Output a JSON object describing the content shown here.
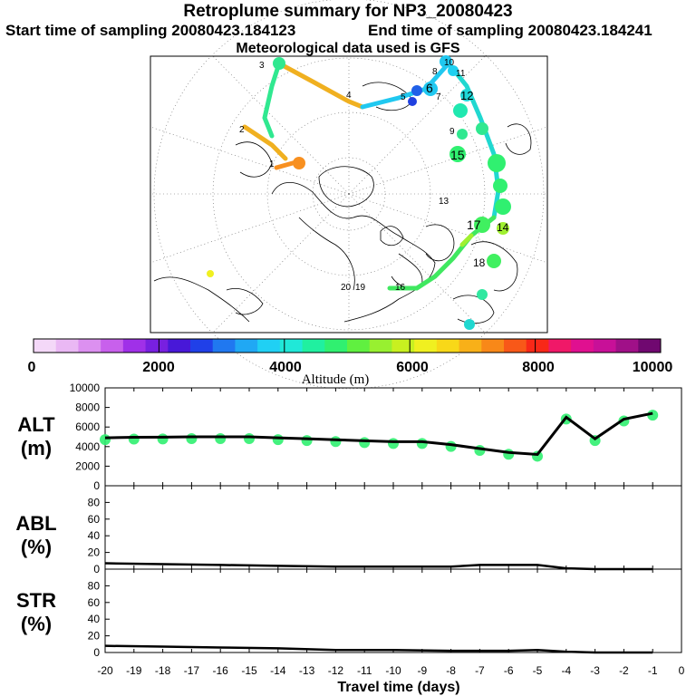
{
  "header": {
    "title": "Retroplume summary for NP3_20080423",
    "start_time": "Start time of sampling 20080423.184123",
    "end_time": "End time of sampling 20080423.184241",
    "meteo": "Meteorological data used is GFS"
  },
  "colorbar": {
    "ticks": [
      "0",
      "2000",
      "4000",
      "6000",
      "8000",
      "10000"
    ],
    "label": "Altitude (m)",
    "colors": [
      "#f4d8f8",
      "#eab8f4",
      "#dc90f0",
      "#c860ec",
      "#a030e8",
      "#7820e0",
      "#4818d8",
      "#2040e8",
      "#2078f0",
      "#20a8f4",
      "#20d0f4",
      "#20e8d8",
      "#20f0a0",
      "#30f070",
      "#60f040",
      "#98f030",
      "#c8f020",
      "#f0f020",
      "#f8d818",
      "#f8b018",
      "#f88818",
      "#f85818",
      "#f82818",
      "#f01868",
      "#e01090",
      "#c81098",
      "#a01088",
      "#700870"
    ]
  },
  "map_labels": [
    "10",
    "8",
    "11",
    "12",
    "6",
    "5",
    "7",
    "3",
    "2",
    "1",
    "4",
    "9",
    "13",
    "14",
    "15",
    "16",
    "17",
    "18",
    "19",
    "20"
  ],
  "chart_data": [
    {
      "type": "line",
      "panel_label": "ALT\n(m)",
      "x": [
        -20,
        -19,
        -18,
        -17,
        -16,
        -15,
        -14,
        -13,
        -12,
        -11,
        -10,
        -9,
        -8,
        -7,
        -6,
        -5,
        -4,
        -3,
        -2,
        -1
      ],
      "y": [
        4900,
        4950,
        4970,
        5000,
        5000,
        5000,
        4900,
        4800,
        4700,
        4600,
        4500,
        4500,
        4200,
        3800,
        3400,
        3200,
        7000,
        4800,
        6800,
        7400
      ],
      "ylim": [
        0,
        10000
      ],
      "yticks": [
        "0",
        "2000",
        "4000",
        "6000",
        "8000",
        "10000"
      ],
      "xlim": [
        -20,
        0
      ],
      "xticks": [
        "-20",
        "-19",
        "-18",
        "-17",
        "-16",
        "-15",
        "-14",
        "-13",
        "-12",
        "-11",
        "-10",
        "-9",
        "-8",
        "-7",
        "-6",
        "-5",
        "-4",
        "-3",
        "-2",
        "-1",
        "0"
      ]
    },
    {
      "type": "line",
      "panel_label": "ABL\n(%)",
      "x": [
        -20,
        -18,
        -16,
        -14,
        -12,
        -10,
        -8,
        -7,
        -6,
        -5,
        -4,
        -3,
        -2,
        -1
      ],
      "y": [
        7,
        6,
        5,
        4,
        3,
        3,
        3,
        5,
        5,
        5,
        1,
        0,
        0,
        0
      ],
      "ylim": [
        0,
        100
      ],
      "yticks": [
        "0",
        "20",
        "40",
        "60",
        "80"
      ]
    },
    {
      "type": "line",
      "panel_label": "STR\n(%)",
      "x": [
        -20,
        -18,
        -16,
        -14,
        -12,
        -10,
        -8,
        -6,
        -5,
        -4,
        -3,
        -2,
        -1
      ],
      "y": [
        8,
        7,
        6,
        5,
        3,
        3,
        2,
        2,
        3,
        1,
        0,
        0,
        0
      ],
      "ylim": [
        0,
        100
      ],
      "yticks": [
        "0",
        "20",
        "40",
        "60",
        "80"
      ]
    }
  ],
  "xlabel": "Travel time (days)"
}
